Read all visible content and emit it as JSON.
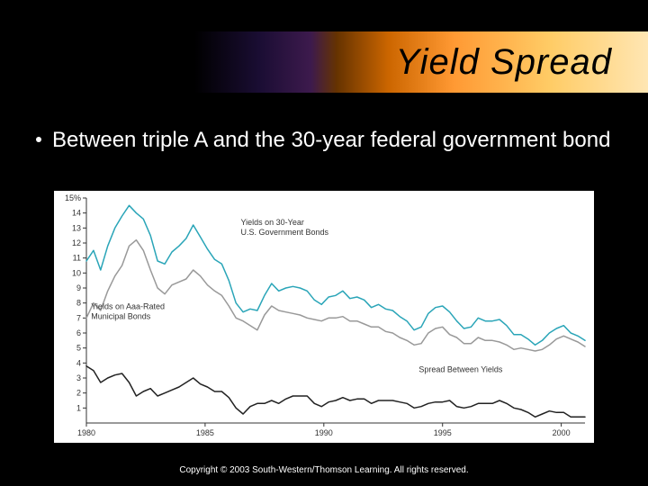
{
  "title": "Yield Spread",
  "bullet": "Between triple A and the 30-year federal government bond",
  "copyright": "Copyright © 2003 South-Western/Thomson Learning. All rights reserved.",
  "chart": {
    "type": "line",
    "background_color": "#ffffff",
    "axis_color": "#333333",
    "tick_color": "#333333",
    "label_color": "#333333",
    "label_fontsize": 9,
    "annotation_fontsize": 9,
    "x": {
      "min": 1980,
      "max": 2001,
      "ticks": [
        1980,
        1985,
        1990,
        1995,
        2000
      ],
      "tick_labels": [
        "1980",
        "1985",
        "1990",
        "1995",
        "2000"
      ]
    },
    "y": {
      "min": 0,
      "max": 15,
      "ticks": [
        1,
        2,
        3,
        4,
        5,
        6,
        7,
        8,
        9,
        10,
        11,
        12,
        13,
        14,
        15
      ],
      "tick_labels": [
        "1",
        "2",
        "3",
        "4",
        "5",
        "6",
        "7",
        "8",
        "9",
        "10",
        "11",
        "12",
        "13",
        "14",
        "15%"
      ]
    },
    "series": [
      {
        "name": "Yields on 30-Year U.S. Government Bonds",
        "color": "#2aa5b8",
        "line_width": 1.5,
        "annotation": {
          "text": "Yields on 30-Year\nU.S. Government Bonds",
          "at_x": 1986.5,
          "at_y": 13.2,
          "align": "start"
        },
        "points": [
          [
            1980.0,
            10.8
          ],
          [
            1980.3,
            11.5
          ],
          [
            1980.6,
            10.2
          ],
          [
            1980.9,
            11.8
          ],
          [
            1981.2,
            13.0
          ],
          [
            1981.5,
            13.8
          ],
          [
            1981.8,
            14.5
          ],
          [
            1982.1,
            14.0
          ],
          [
            1982.4,
            13.6
          ],
          [
            1982.7,
            12.5
          ],
          [
            1983.0,
            10.8
          ],
          [
            1983.3,
            10.6
          ],
          [
            1983.6,
            11.4
          ],
          [
            1983.9,
            11.8
          ],
          [
            1984.2,
            12.3
          ],
          [
            1984.5,
            13.2
          ],
          [
            1984.8,
            12.4
          ],
          [
            1985.1,
            11.6
          ],
          [
            1985.4,
            10.9
          ],
          [
            1985.7,
            10.6
          ],
          [
            1986.0,
            9.5
          ],
          [
            1986.3,
            8.0
          ],
          [
            1986.6,
            7.4
          ],
          [
            1986.9,
            7.6
          ],
          [
            1987.2,
            7.5
          ],
          [
            1987.5,
            8.5
          ],
          [
            1987.8,
            9.3
          ],
          [
            1988.1,
            8.8
          ],
          [
            1988.4,
            9.0
          ],
          [
            1988.7,
            9.1
          ],
          [
            1989.0,
            9.0
          ],
          [
            1989.3,
            8.8
          ],
          [
            1989.6,
            8.2
          ],
          [
            1989.9,
            7.9
          ],
          [
            1990.2,
            8.4
          ],
          [
            1990.5,
            8.5
          ],
          [
            1990.8,
            8.8
          ],
          [
            1991.1,
            8.3
          ],
          [
            1991.4,
            8.4
          ],
          [
            1991.7,
            8.2
          ],
          [
            1992.0,
            7.7
          ],
          [
            1992.3,
            7.9
          ],
          [
            1992.6,
            7.6
          ],
          [
            1992.9,
            7.5
          ],
          [
            1993.2,
            7.1
          ],
          [
            1993.5,
            6.8
          ],
          [
            1993.8,
            6.2
          ],
          [
            1994.1,
            6.4
          ],
          [
            1994.4,
            7.3
          ],
          [
            1994.7,
            7.7
          ],
          [
            1995.0,
            7.8
          ],
          [
            1995.3,
            7.4
          ],
          [
            1995.6,
            6.8
          ],
          [
            1995.9,
            6.3
          ],
          [
            1996.2,
            6.4
          ],
          [
            1996.5,
            7.0
          ],
          [
            1996.8,
            6.8
          ],
          [
            1997.1,
            6.8
          ],
          [
            1997.4,
            6.9
          ],
          [
            1997.7,
            6.5
          ],
          [
            1998.0,
            5.9
          ],
          [
            1998.3,
            5.9
          ],
          [
            1998.6,
            5.6
          ],
          [
            1998.9,
            5.2
          ],
          [
            1999.2,
            5.5
          ],
          [
            1999.5,
            6.0
          ],
          [
            1999.8,
            6.3
          ],
          [
            2000.1,
            6.5
          ],
          [
            2000.4,
            6.0
          ],
          [
            2000.7,
            5.8
          ],
          [
            2001.0,
            5.5
          ]
        ]
      },
      {
        "name": "Yields on Aaa-Rated Municipal Bonds",
        "color": "#999999",
        "line_width": 1.5,
        "annotation": {
          "text": "Yields on Aaa-Rated\nMunicipal Bonds",
          "at_x": 1980.2,
          "at_y": 7.6,
          "align": "start"
        },
        "points": [
          [
            1980.0,
            7.0
          ],
          [
            1980.3,
            8.0
          ],
          [
            1980.6,
            7.5
          ],
          [
            1980.9,
            8.8
          ],
          [
            1981.2,
            9.8
          ],
          [
            1981.5,
            10.5
          ],
          [
            1981.8,
            11.8
          ],
          [
            1982.1,
            12.2
          ],
          [
            1982.4,
            11.5
          ],
          [
            1982.7,
            10.2
          ],
          [
            1983.0,
            9.0
          ],
          [
            1983.3,
            8.6
          ],
          [
            1983.6,
            9.2
          ],
          [
            1983.9,
            9.4
          ],
          [
            1984.2,
            9.6
          ],
          [
            1984.5,
            10.2
          ],
          [
            1984.8,
            9.8
          ],
          [
            1985.1,
            9.2
          ],
          [
            1985.4,
            8.8
          ],
          [
            1985.7,
            8.5
          ],
          [
            1986.0,
            7.8
          ],
          [
            1986.3,
            7.0
          ],
          [
            1986.6,
            6.8
          ],
          [
            1986.9,
            6.5
          ],
          [
            1987.2,
            6.2
          ],
          [
            1987.5,
            7.2
          ],
          [
            1987.8,
            7.8
          ],
          [
            1988.1,
            7.5
          ],
          [
            1988.4,
            7.4
          ],
          [
            1988.7,
            7.3
          ],
          [
            1989.0,
            7.2
          ],
          [
            1989.3,
            7.0
          ],
          [
            1989.6,
            6.9
          ],
          [
            1989.9,
            6.8
          ],
          [
            1990.2,
            7.0
          ],
          [
            1990.5,
            7.0
          ],
          [
            1990.8,
            7.1
          ],
          [
            1991.1,
            6.8
          ],
          [
            1991.4,
            6.8
          ],
          [
            1991.7,
            6.6
          ],
          [
            1992.0,
            6.4
          ],
          [
            1992.3,
            6.4
          ],
          [
            1992.6,
            6.1
          ],
          [
            1992.9,
            6.0
          ],
          [
            1993.2,
            5.7
          ],
          [
            1993.5,
            5.5
          ],
          [
            1993.8,
            5.2
          ],
          [
            1994.1,
            5.3
          ],
          [
            1994.4,
            6.0
          ],
          [
            1994.7,
            6.3
          ],
          [
            1995.0,
            6.4
          ],
          [
            1995.3,
            5.9
          ],
          [
            1995.6,
            5.7
          ],
          [
            1995.9,
            5.3
          ],
          [
            1996.2,
            5.3
          ],
          [
            1996.5,
            5.7
          ],
          [
            1996.8,
            5.5
          ],
          [
            1997.1,
            5.5
          ],
          [
            1997.4,
            5.4
          ],
          [
            1997.7,
            5.2
          ],
          [
            1998.0,
            4.9
          ],
          [
            1998.3,
            5.0
          ],
          [
            1998.6,
            4.9
          ],
          [
            1998.9,
            4.8
          ],
          [
            1999.2,
            4.9
          ],
          [
            1999.5,
            5.2
          ],
          [
            1999.8,
            5.6
          ],
          [
            2000.1,
            5.8
          ],
          [
            2000.4,
            5.6
          ],
          [
            2000.7,
            5.4
          ],
          [
            2001.0,
            5.1
          ]
        ]
      },
      {
        "name": "Spread Between Yields",
        "color": "#222222",
        "line_width": 1.5,
        "annotation": {
          "text": "Spread Between Yields",
          "at_x": 1994.0,
          "at_y": 3.4,
          "align": "start"
        },
        "points": [
          [
            1980.0,
            3.8
          ],
          [
            1980.3,
            3.5
          ],
          [
            1980.6,
            2.7
          ],
          [
            1980.9,
            3.0
          ],
          [
            1981.2,
            3.2
          ],
          [
            1981.5,
            3.3
          ],
          [
            1981.8,
            2.7
          ],
          [
            1982.1,
            1.8
          ],
          [
            1982.4,
            2.1
          ],
          [
            1982.7,
            2.3
          ],
          [
            1983.0,
            1.8
          ],
          [
            1983.3,
            2.0
          ],
          [
            1983.6,
            2.2
          ],
          [
            1983.9,
            2.4
          ],
          [
            1984.2,
            2.7
          ],
          [
            1984.5,
            3.0
          ],
          [
            1984.8,
            2.6
          ],
          [
            1985.1,
            2.4
          ],
          [
            1985.4,
            2.1
          ],
          [
            1985.7,
            2.1
          ],
          [
            1986.0,
            1.7
          ],
          [
            1986.3,
            1.0
          ],
          [
            1986.6,
            0.6
          ],
          [
            1986.9,
            1.1
          ],
          [
            1987.2,
            1.3
          ],
          [
            1987.5,
            1.3
          ],
          [
            1987.8,
            1.5
          ],
          [
            1988.1,
            1.3
          ],
          [
            1988.4,
            1.6
          ],
          [
            1988.7,
            1.8
          ],
          [
            1989.0,
            1.8
          ],
          [
            1989.3,
            1.8
          ],
          [
            1989.6,
            1.3
          ],
          [
            1989.9,
            1.1
          ],
          [
            1990.2,
            1.4
          ],
          [
            1990.5,
            1.5
          ],
          [
            1990.8,
            1.7
          ],
          [
            1991.1,
            1.5
          ],
          [
            1991.4,
            1.6
          ],
          [
            1991.7,
            1.6
          ],
          [
            1992.0,
            1.3
          ],
          [
            1992.3,
            1.5
          ],
          [
            1992.6,
            1.5
          ],
          [
            1992.9,
            1.5
          ],
          [
            1993.2,
            1.4
          ],
          [
            1993.5,
            1.3
          ],
          [
            1993.8,
            1.0
          ],
          [
            1994.1,
            1.1
          ],
          [
            1994.4,
            1.3
          ],
          [
            1994.7,
            1.4
          ],
          [
            1995.0,
            1.4
          ],
          [
            1995.3,
            1.5
          ],
          [
            1995.6,
            1.1
          ],
          [
            1995.9,
            1.0
          ],
          [
            1996.2,
            1.1
          ],
          [
            1996.5,
            1.3
          ],
          [
            1996.8,
            1.3
          ],
          [
            1997.1,
            1.3
          ],
          [
            1997.4,
            1.5
          ],
          [
            1997.7,
            1.3
          ],
          [
            1998.0,
            1.0
          ],
          [
            1998.3,
            0.9
          ],
          [
            1998.6,
            0.7
          ],
          [
            1998.9,
            0.4
          ],
          [
            1999.2,
            0.6
          ],
          [
            1999.5,
            0.8
          ],
          [
            1999.8,
            0.7
          ],
          [
            2000.1,
            0.7
          ],
          [
            2000.4,
            0.4
          ],
          [
            2000.7,
            0.4
          ],
          [
            2001.0,
            0.4
          ]
        ]
      }
    ]
  }
}
